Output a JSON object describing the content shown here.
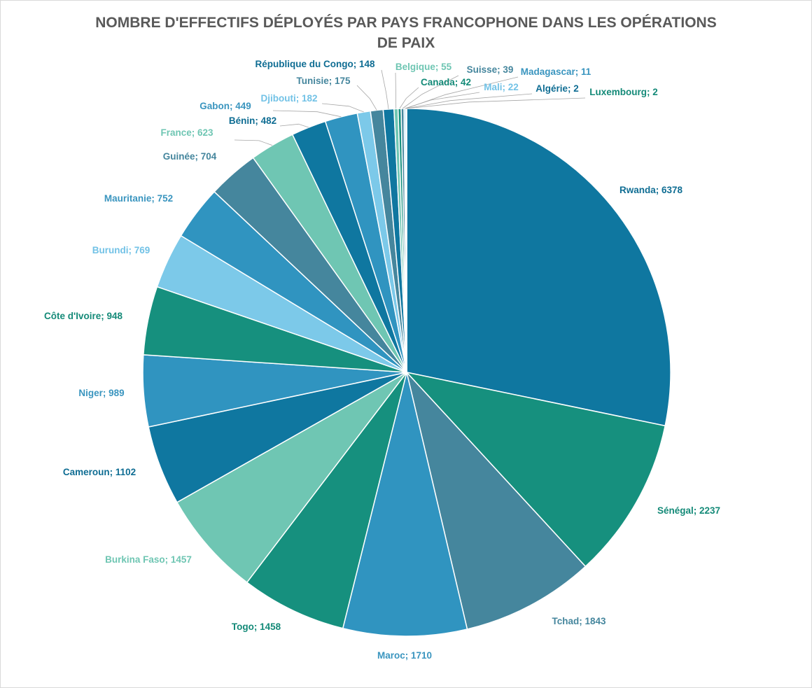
{
  "chart_data": {
    "type": "pie",
    "title": "NOMBRE D'EFFECTIFS DÉPLOYÉS PAR PAYS FRANCOPHONE DANS LES OPÉRATIONS DE PAIX",
    "title_lines": [
      "NOMBRE D'EFFECTIFS DÉPLOYÉS PAR PAYS FRANCOPHONE DANS LES OPÉRATIONS",
      "DE PAIX"
    ],
    "label_separator": "; ",
    "palette": [
      "#0f77a0",
      "#16907e",
      "#45869d",
      "#3094c0",
      "#6fc6b3",
      "#7cc9e9"
    ],
    "slices": [
      {
        "category": "Rwanda",
        "value": 6378,
        "color": "#0f77a0"
      },
      {
        "category": "Sénégal",
        "value": 2237,
        "color": "#16907e"
      },
      {
        "category": "Tchad",
        "value": 1843,
        "color": "#45869d"
      },
      {
        "category": "Maroc",
        "value": 1710,
        "color": "#3094c0"
      },
      {
        "category": "Togo",
        "value": 1458,
        "color": "#16907e"
      },
      {
        "category": "Burkina Faso",
        "value": 1457,
        "color": "#6fc6b3"
      },
      {
        "category": "Cameroun",
        "value": 1102,
        "color": "#0f77a0"
      },
      {
        "category": "Niger",
        "value": 989,
        "color": "#3094c0"
      },
      {
        "category": "Côte d'Ivoire",
        "value": 948,
        "color": "#16907e"
      },
      {
        "category": "Burundi",
        "value": 769,
        "color": "#7cc9e9"
      },
      {
        "category": "Mauritanie",
        "value": 752,
        "color": "#3094c0"
      },
      {
        "category": "Guinée",
        "value": 704,
        "color": "#45869d"
      },
      {
        "category": "France",
        "value": 623,
        "color": "#6fc6b3"
      },
      {
        "category": "Bénin",
        "value": 482,
        "color": "#0f77a0"
      },
      {
        "category": "Gabon",
        "value": 449,
        "color": "#3094c0"
      },
      {
        "category": "Djibouti",
        "value": 182,
        "color": "#7cc9e9"
      },
      {
        "category": "Tunisie",
        "value": 175,
        "color": "#45869d"
      },
      {
        "category": "République du Congo",
        "value": 148,
        "color": "#0f77a0"
      },
      {
        "category": "Belgique",
        "value": 55,
        "color": "#6fc6b3"
      },
      {
        "category": "Canada",
        "value": 42,
        "color": "#16907e"
      },
      {
        "category": "Suisse",
        "value": 39,
        "color": "#45869d"
      },
      {
        "category": "Mali",
        "value": 22,
        "color": "#7cc9e9"
      },
      {
        "category": "Madagascar",
        "value": 11,
        "color": "#3094c0"
      },
      {
        "category": "Algérie",
        "value": 2,
        "color": "#0f77a0"
      },
      {
        "category": "Luxembourg",
        "value": 2,
        "color": "#16907e"
      }
    ]
  }
}
